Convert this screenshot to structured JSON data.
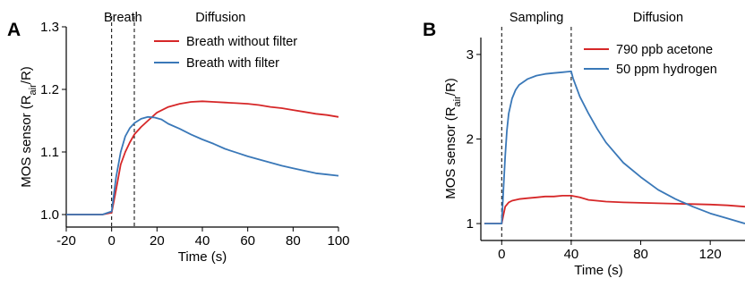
{
  "chart_data": [
    {
      "panel": "A",
      "type": "line",
      "xlabel": "Time (s)",
      "ylabel": "MOS sensor (R_air/R)",
      "xlim": [
        -20,
        100
      ],
      "ylim": [
        0.98,
        1.3
      ],
      "xticks": [
        -20,
        0,
        20,
        40,
        60,
        80,
        100
      ],
      "yticks": [
        1.0,
        1.1,
        1.2,
        1.3
      ],
      "ytick_labels": [
        "1.0",
        "1.1",
        "1.2",
        "1.3"
      ],
      "regions": [
        {
          "label": "Breath",
          "x": 5
        },
        {
          "label": "Diffusion",
          "x": 48
        }
      ],
      "dashed_lines": [
        0,
        10
      ],
      "legend_position": "top-right",
      "series": [
        {
          "name": "Breath without filter",
          "color": "#d62728",
          "x": [
            -20,
            -16,
            -12,
            -8,
            -4,
            0,
            2,
            4,
            6,
            8,
            10,
            13,
            16,
            20,
            25,
            30,
            35,
            40,
            45,
            50,
            55,
            60,
            65,
            70,
            75,
            80,
            85,
            90,
            95,
            100
          ],
          "y": [
            1.0,
            1.0,
            1.0,
            1.0,
            1.0,
            1.003,
            1.04,
            1.08,
            1.1,
            1.115,
            1.128,
            1.14,
            1.15,
            1.163,
            1.172,
            1.177,
            1.18,
            1.181,
            1.18,
            1.179,
            1.178,
            1.177,
            1.175,
            1.172,
            1.17,
            1.167,
            1.164,
            1.161,
            1.159,
            1.156
          ]
        },
        {
          "name": "Breath with filter",
          "color": "#3a78b8",
          "x": [
            -20,
            -16,
            -12,
            -8,
            -4,
            0,
            2,
            4,
            6,
            8,
            10,
            13,
            16,
            19,
            22,
            25,
            30,
            35,
            40,
            45,
            50,
            55,
            60,
            65,
            70,
            75,
            80,
            85,
            90,
            95,
            100
          ],
          "y": [
            1.0,
            1.0,
            1.0,
            1.0,
            1.0,
            1.005,
            1.06,
            1.1,
            1.125,
            1.138,
            1.146,
            1.153,
            1.156,
            1.155,
            1.152,
            1.145,
            1.137,
            1.128,
            1.12,
            1.113,
            1.105,
            1.099,
            1.093,
            1.088,
            1.083,
            1.078,
            1.074,
            1.07,
            1.066,
            1.064,
            1.062
          ]
        }
      ]
    },
    {
      "panel": "B",
      "type": "line",
      "xlabel": "Time (s)",
      "ylabel": "MOS sensor (R_air/R)",
      "xlim": [
        -12,
        140
      ],
      "ylim": [
        0.8,
        3.2
      ],
      "xticks": [
        0,
        40,
        80,
        120
      ],
      "yticks": [
        1,
        2,
        3
      ],
      "ytick_labels": [
        "1",
        "2",
        "3"
      ],
      "regions": [
        {
          "label": "Sampling",
          "x": 20
        },
        {
          "label": "Diffusion",
          "x": 90
        }
      ],
      "dashed_lines": [
        0,
        40
      ],
      "legend_position": "top-right",
      "series": [
        {
          "name": "790 ppb acetone",
          "color": "#d62728",
          "x": [
            -10,
            -5,
            0,
            1,
            2,
            4,
            6,
            10,
            15,
            20,
            25,
            30,
            35,
            40,
            45,
            50,
            60,
            70,
            80,
            90,
            100,
            110,
            120,
            130,
            140
          ],
          "y": [
            1.0,
            1.0,
            1.0,
            1.1,
            1.2,
            1.25,
            1.27,
            1.29,
            1.3,
            1.31,
            1.32,
            1.32,
            1.33,
            1.33,
            1.31,
            1.28,
            1.26,
            1.25,
            1.245,
            1.24,
            1.235,
            1.23,
            1.225,
            1.215,
            1.2
          ]
        },
        {
          "name": "50 ppm hydrogen",
          "color": "#3a78b8",
          "x": [
            -10,
            -5,
            0,
            1,
            2,
            3,
            4,
            6,
            8,
            10,
            15,
            20,
            25,
            30,
            35,
            40,
            41,
            45,
            50,
            55,
            60,
            70,
            80,
            90,
            100,
            110,
            120,
            130,
            140
          ],
          "y": [
            1.0,
            1.0,
            1.0,
            1.4,
            1.8,
            2.1,
            2.3,
            2.48,
            2.58,
            2.64,
            2.71,
            2.75,
            2.77,
            2.78,
            2.79,
            2.8,
            2.72,
            2.5,
            2.3,
            2.12,
            1.96,
            1.72,
            1.55,
            1.4,
            1.29,
            1.2,
            1.12,
            1.06,
            1.0
          ]
        }
      ]
    }
  ]
}
